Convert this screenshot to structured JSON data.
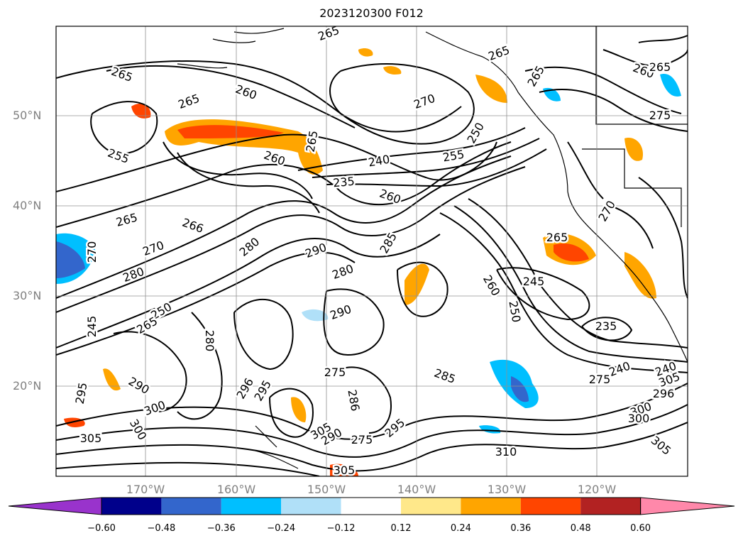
{
  "title": "2023120300 F012",
  "lat_labels": [
    "50°N",
    "40°N",
    "30°N",
    "20°N"
  ],
  "lon_labels": [
    "170°W",
    "160°W",
    "150°W",
    "140°W",
    "130°W",
    "120°W"
  ],
  "colorbar": {
    "ticks": [
      "−0.60",
      "−0.48",
      "−0.36",
      "−0.24",
      "−0.12",
      "0.12",
      "0.24",
      "0.36",
      "0.48",
      "0.60"
    ],
    "colors": [
      "#9933cc",
      "#00008b",
      "#3366cc",
      "#00bfff",
      "#b0e0f8",
      "#ffffff",
      "#ffe88a",
      "#ffa500",
      "#ff4500",
      "#b22222",
      "#ff88aa"
    ]
  },
  "contour_labels": [
    "265",
    "265",
    "265",
    "260",
    "270",
    "265",
    "260",
    "265",
    "255",
    "265",
    "275",
    "265",
    "260",
    "250",
    "255",
    "240",
    "235",
    "260",
    "265",
    "270",
    "266",
    "270",
    "280",
    "290",
    "285",
    "270",
    "280",
    "280",
    "250",
    "265",
    "245",
    "290",
    "260",
    "245",
    "250",
    "235",
    "280",
    "240",
    "275",
    "285",
    "295",
    "290",
    "296",
    "300",
    "305",
    "300",
    "305",
    "310",
    "305",
    "300",
    "295",
    "296",
    "295",
    "286",
    "305",
    "290",
    "275",
    "300",
    "305",
    "240",
    "275",
    "265"
  ]
}
